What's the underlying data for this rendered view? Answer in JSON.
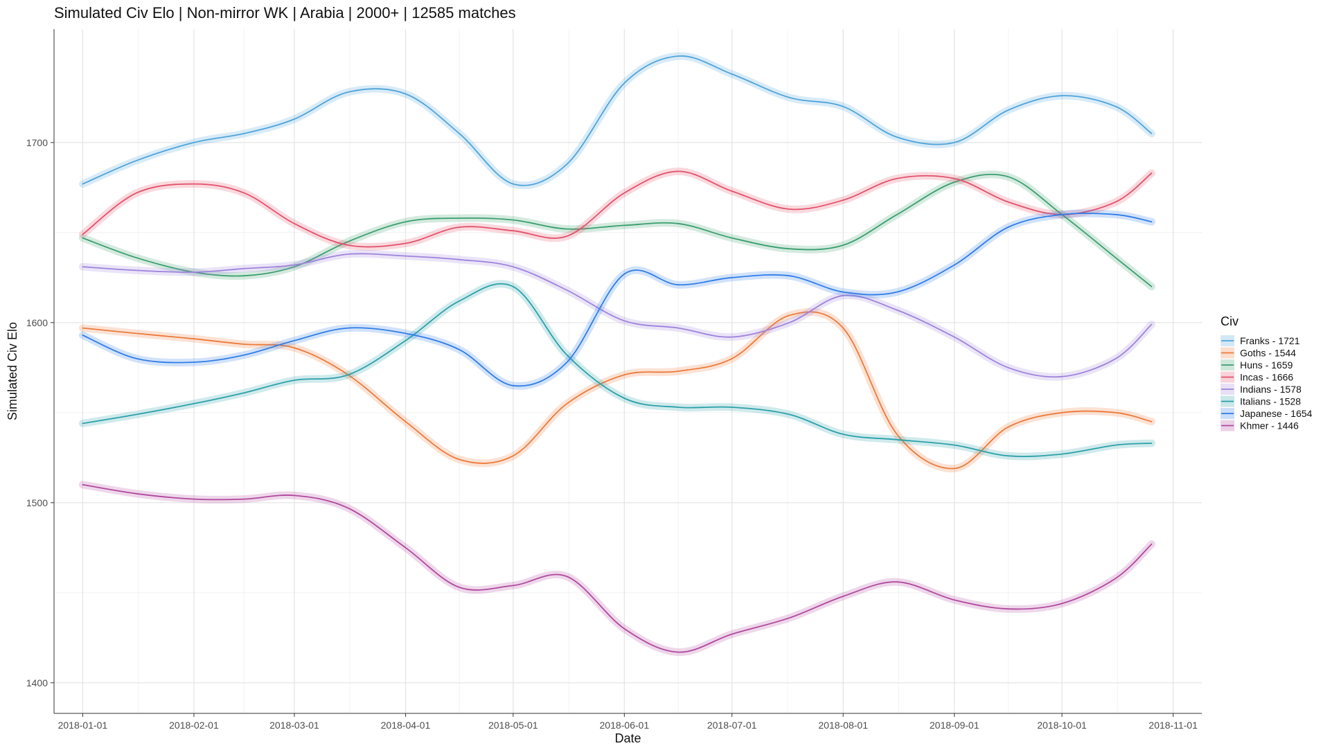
{
  "chart_data": {
    "type": "line",
    "title": "Simulated Civ Elo | Non-mirror WK | Arabia | 2000+ | 12585 matches",
    "xlabel": "Date",
    "ylabel": "Simulated Civ Elo",
    "ylim": [
      1383,
      1763
    ],
    "yticks": [
      1400,
      1500,
      1600,
      1700
    ],
    "ytick_labels": [
      "1400",
      "1500",
      "1600",
      "1700"
    ],
    "xlim_days": [
      -8,
      312
    ],
    "xtick_days": [
      0,
      31,
      59,
      90,
      120,
      151,
      181,
      212,
      243,
      273,
      304
    ],
    "xtick_labels": [
      "2018-01-01",
      "2018-02-01",
      "2018-03-01",
      "2018-04-01",
      "2018-05-01",
      "2018-06-01",
      "2018-07-01",
      "2018-08-01",
      "2018-09-01",
      "2018-10-01",
      "2018-11-01"
    ],
    "grid": true,
    "legend_title": "Civ",
    "legend_position": "right",
    "x_days": [
      0,
      15,
      31,
      45,
      59,
      74,
      90,
      105,
      120,
      135,
      151,
      166,
      181,
      197,
      212,
      227,
      243,
      258,
      273,
      288,
      298
    ],
    "series": [
      {
        "name": "Franks",
        "label": "Franks - 1721",
        "color": "#4ea3da",
        "values": [
          1677,
          1690,
          1700,
          1705,
          1713,
          1728,
          1727,
          1705,
          1677,
          1688,
          1733,
          1748,
          1738,
          1725,
          1720,
          1703,
          1700,
          1718,
          1726,
          1720,
          1705
        ]
      },
      {
        "name": "Goths",
        "label": "Goths - 1544",
        "color": "#ec7a3a",
        "values": [
          1597,
          1594,
          1591,
          1588,
          1586,
          1571,
          1545,
          1524,
          1526,
          1555,
          1571,
          1573,
          1580,
          1604,
          1597,
          1538,
          1519,
          1542,
          1550,
          1550,
          1545
        ]
      },
      {
        "name": "Huns",
        "label": "Huns - 1659",
        "color": "#3a9e6e",
        "values": [
          1647,
          1636,
          1628,
          1626,
          1631,
          1645,
          1656,
          1658,
          1657,
          1652,
          1654,
          1655,
          1647,
          1641,
          1643,
          1660,
          1678,
          1681,
          1660,
          1636,
          1620
        ]
      },
      {
        "name": "Incas",
        "label": "Incas - 1666",
        "color": "#e2506b",
        "values": [
          1649,
          1672,
          1677,
          1672,
          1655,
          1643,
          1644,
          1653,
          1651,
          1648,
          1672,
          1684,
          1673,
          1663,
          1668,
          1680,
          1680,
          1667,
          1660,
          1667,
          1683
        ]
      },
      {
        "name": "Indians",
        "label": "Indians - 1578",
        "color": "#9e82dc",
        "values": [
          1631,
          1629,
          1628,
          1630,
          1632,
          1638,
          1637,
          1635,
          1631,
          1618,
          1601,
          1597,
          1592,
          1600,
          1615,
          1607,
          1592,
          1575,
          1570,
          1580,
          1599
        ]
      },
      {
        "name": "Italians",
        "label": "Italians - 1528",
        "color": "#2aa0a8",
        "values": [
          1544,
          1549,
          1555,
          1561,
          1568,
          1571,
          1590,
          1612,
          1620,
          1582,
          1558,
          1553,
          1553,
          1549,
          1538,
          1535,
          1532,
          1526,
          1527,
          1532,
          1533
        ]
      },
      {
        "name": "Japanese",
        "label": "Japanese - 1654",
        "color": "#2f7de6",
        "values": [
          1593,
          1580,
          1578,
          1582,
          1590,
          1597,
          1594,
          1585,
          1565,
          1578,
          1627,
          1621,
          1625,
          1626,
          1617,
          1617,
          1632,
          1653,
          1660,
          1660,
          1656
        ]
      },
      {
        "name": "Khmer",
        "label": "Khmer - 1446",
        "color": "#b0479e",
        "values": [
          1510,
          1505,
          1502,
          1502,
          1504,
          1497,
          1475,
          1453,
          1454,
          1459,
          1430,
          1417,
          1427,
          1436,
          1448,
          1456,
          1446,
          1441,
          1444,
          1458,
          1477
        ]
      }
    ]
  }
}
